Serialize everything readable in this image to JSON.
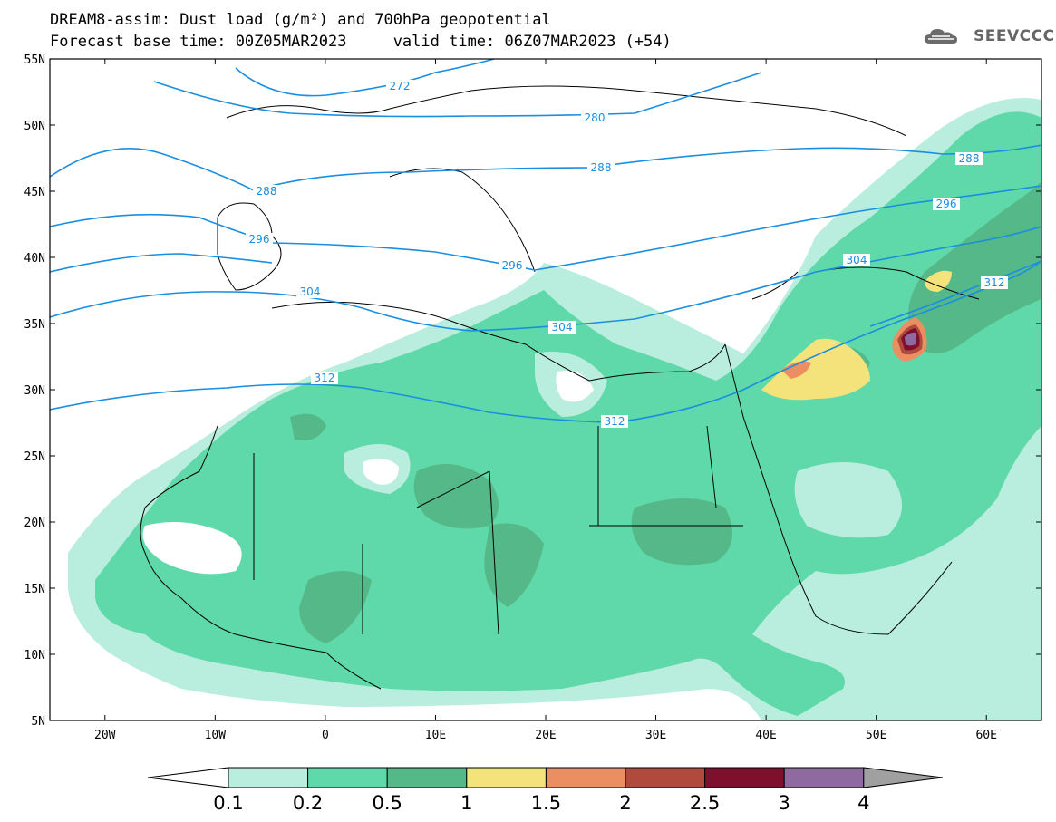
{
  "title": {
    "line1": "DREAM8-assim: Dust load (g/m²) and 700hPa geopotential",
    "line2": "Forecast base time: 00Z05MAR2023     valid time: 06Z07MAR2023 (+54)"
  },
  "logo": {
    "text": "SEEVCCC",
    "icon": "cloud-icon"
  },
  "map": {
    "lon_range": [
      -25,
      65
    ],
    "lat_range": [
      5,
      55
    ],
    "lat_ticks": [
      "55N",
      "50N",
      "45N",
      "40N",
      "35N",
      "30N",
      "25N",
      "20N",
      "15N",
      "10N",
      "5N"
    ],
    "lon_ticks": [
      "20W",
      "10W",
      "0",
      "10E",
      "20E",
      "30E",
      "40E",
      "50E",
      "60E"
    ],
    "contour_color": "#1a8ee0",
    "contour_labels": [
      "272",
      "280",
      "288",
      "288",
      "288",
      "296",
      "296",
      "296",
      "304",
      "304",
      "304",
      "312",
      "312",
      "312"
    ]
  },
  "colorbar": {
    "levels": [
      "0.1",
      "0.2",
      "0.5",
      "1",
      "1.5",
      "2",
      "2.5",
      "3",
      "4"
    ],
    "colors": [
      "#ffffff",
      "#b9eedf",
      "#5fd9a9",
      "#55b888",
      "#f4e37a",
      "#eb8f63",
      "#b04a3d",
      "#7e0f2d",
      "#8f6aa0",
      "#a0a0a0"
    ]
  }
}
